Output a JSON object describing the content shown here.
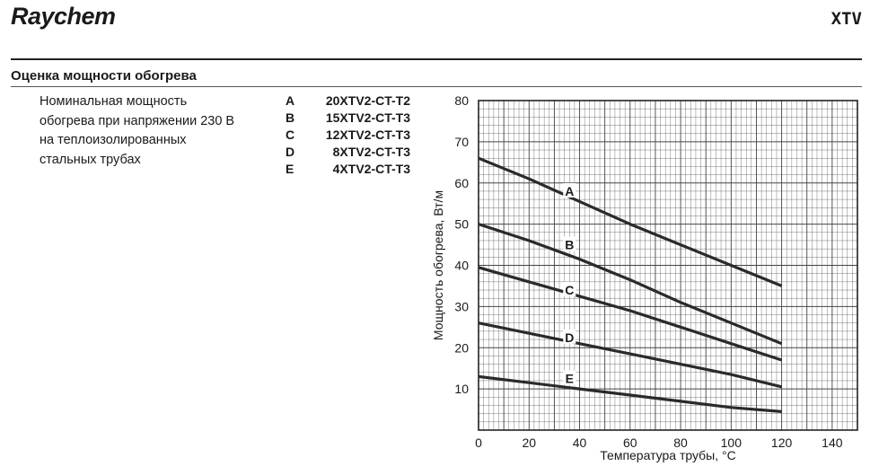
{
  "header": {
    "brand": "Raychem",
    "product": "XTV"
  },
  "section": {
    "title": "Оценка мощности обогрева"
  },
  "description": {
    "lines": [
      "Номинальная мощность",
      "обогрева при напряжении 230 В",
      "на теплоизолированных",
      "стальных трубах"
    ]
  },
  "legend": [
    {
      "key": "A",
      "code": "20XTV2-CT-T2"
    },
    {
      "key": "B",
      "code": "15XTV2-CT-T3"
    },
    {
      "key": "C",
      "code": "12XTV2-CT-T3"
    },
    {
      "key": "D",
      "code": "8XTV2-CT-T3"
    },
    {
      "key": "E",
      "code": "4XTV2-CT-T3"
    }
  ],
  "chart_data": {
    "type": "line",
    "xlabel": "Температура трубы, °C",
    "ylabel": "Мощность обогрева, Вт/м",
    "xlim": [
      0,
      150
    ],
    "ylim": [
      0,
      80
    ],
    "xticks": [
      0,
      20,
      40,
      60,
      80,
      100,
      120,
      140
    ],
    "yticks": [
      10,
      20,
      30,
      40,
      50,
      60,
      70,
      80
    ],
    "grid": true,
    "line_color": "#2a2a2a",
    "series": [
      {
        "name": "A",
        "x": [
          0,
          20,
          40,
          60,
          80,
          100,
          120
        ],
        "y": [
          66,
          61,
          55.5,
          50,
          45,
          40,
          35
        ],
        "label_at": [
          36,
          58
        ]
      },
      {
        "name": "B",
        "x": [
          0,
          20,
          40,
          60,
          80,
          100,
          120
        ],
        "y": [
          50,
          46,
          41.5,
          36.5,
          31,
          26,
          21
        ],
        "label_at": [
          36,
          45
        ]
      },
      {
        "name": "C",
        "x": [
          0,
          20,
          40,
          60,
          80,
          100,
          120
        ],
        "y": [
          39.5,
          36,
          32.5,
          29,
          25,
          21,
          17
        ],
        "label_at": [
          36,
          34
        ]
      },
      {
        "name": "D",
        "x": [
          0,
          20,
          40,
          60,
          80,
          100,
          120
        ],
        "y": [
          26,
          23.5,
          21,
          18.5,
          16,
          13.5,
          10.5
        ],
        "label_at": [
          36,
          22.5
        ]
      },
      {
        "name": "E",
        "x": [
          0,
          20,
          40,
          60,
          80,
          100,
          120
        ],
        "y": [
          13,
          11.5,
          10,
          8.5,
          7,
          5.5,
          4.5
        ],
        "label_at": [
          36,
          12.5
        ]
      }
    ]
  }
}
